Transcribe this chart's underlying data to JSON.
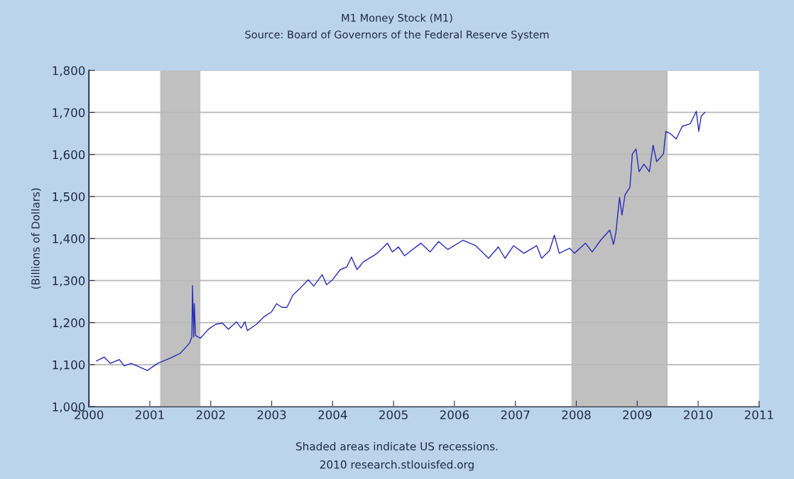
{
  "chart_data": {
    "type": "line",
    "title": "M1 Money Stock (M1)",
    "subtitle": "Source: Board of Governors of the Federal Reserve System",
    "ylabel": "(Billions of Dollars)",
    "annotations": [
      "Shaded areas indicate US recessions.",
      "2010 research.stlouisfed.org"
    ],
    "series": [
      {
        "color": "#2a2ab8",
        "x": [
          2000.125,
          2000.25,
          2000.35,
          2000.5,
          2000.58,
          2000.69,
          2000.79,
          2000.96,
          2001.125,
          2001.33,
          2001.5,
          2001.65,
          2001.69,
          2001.7,
          2001.72,
          2001.73,
          2001.75,
          2001.83,
          2001.96,
          2002.08,
          2002.19,
          2002.29,
          2002.42,
          2002.5,
          2002.56,
          2002.6,
          2002.75,
          2002.875,
          2003.0,
          2003.08,
          2003.17,
          2003.25,
          2003.35,
          2003.46,
          2003.6,
          2003.69,
          2003.83,
          2003.9,
          2004.0,
          2004.125,
          2004.23,
          2004.31,
          2004.4,
          2004.5,
          2004.67,
          2004.73,
          2004.9,
          2004.98,
          2005.08,
          2005.18,
          2005.45,
          2005.6,
          2005.74,
          2005.89,
          2006.14,
          2006.35,
          2006.56,
          2006.72,
          2006.83,
          2006.97,
          2007.14,
          2007.35,
          2007.43,
          2007.56,
          2007.64,
          2007.72,
          2007.89,
          2007.97,
          2008.15,
          2008.26,
          2008.4,
          2008.55,
          2008.61,
          2008.65,
          2008.71,
          2008.75,
          2008.8,
          2008.88,
          2008.92,
          2008.98,
          2009.03,
          2009.11,
          2009.2,
          2009.26,
          2009.32,
          2009.43,
          2009.47,
          2009.55,
          2009.64,
          2009.74,
          2009.87,
          2009.97,
          2010.01,
          2010.05,
          2010.11
        ],
        "values": [
          1109,
          1118,
          1103,
          1112,
          1097,
          1103,
          1097,
          1086,
          1103,
          1115,
          1127,
          1151,
          1166,
          1288,
          1166,
          1245,
          1169,
          1163,
          1184,
          1196,
          1199,
          1184,
          1202,
          1187,
          1202,
          1181,
          1196,
          1214,
          1226,
          1245,
          1236,
          1236,
          1266,
          1281,
          1302,
          1287,
          1314,
          1290,
          1302,
          1326,
          1332,
          1356,
          1326,
          1344,
          1359,
          1365,
          1389,
          1368,
          1380,
          1359,
          1389,
          1368,
          1393,
          1374,
          1396,
          1383,
          1353,
          1380,
          1353,
          1383,
          1365,
          1383,
          1353,
          1371,
          1408,
          1365,
          1377,
          1365,
          1389,
          1368,
          1396,
          1420,
          1386,
          1414,
          1498,
          1456,
          1504,
          1522,
          1601,
          1613,
          1559,
          1577,
          1559,
          1622,
          1583,
          1601,
          1655,
          1649,
          1637,
          1667,
          1673,
          1703,
          1655,
          1691,
          1700
        ]
      }
    ],
    "xlim": [
      2000,
      2011
    ],
    "xticks": [
      2000,
      2001,
      2002,
      2003,
      2004,
      2005,
      2006,
      2007,
      2008,
      2009,
      2010,
      2011
    ],
    "ylim": [
      1000,
      1800
    ],
    "yticks": [
      {
        "value": 1000,
        "label": "1,000"
      },
      {
        "value": 1100,
        "label": "1,100"
      },
      {
        "value": 1200,
        "label": "1,200"
      },
      {
        "value": 1300,
        "label": "1,300"
      },
      {
        "value": 1400,
        "label": "1,400"
      },
      {
        "value": 1500,
        "label": "1,500"
      },
      {
        "value": 1600,
        "label": "1,600"
      },
      {
        "value": 1700,
        "label": "1,700"
      },
      {
        "value": 1800,
        "label": "1,800"
      }
    ],
    "bands": [
      {
        "axis": "x",
        "from": 2001.17,
        "to": 2001.83,
        "color": "#c0c0c0"
      },
      {
        "axis": "x",
        "from": 2007.92,
        "to": 2009.5,
        "color": "#c0c0c0"
      }
    ],
    "grid": "y",
    "legend": false
  }
}
